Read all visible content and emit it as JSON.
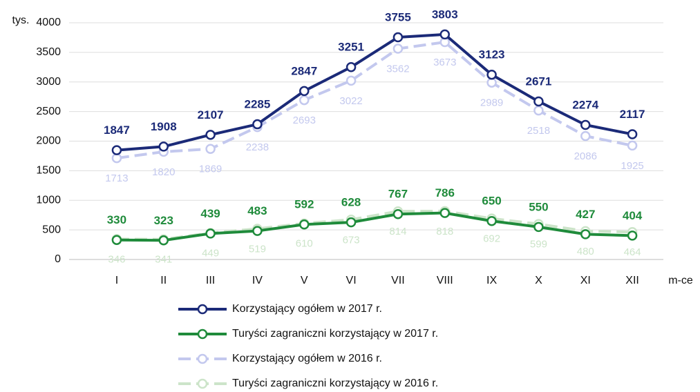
{
  "chart_data": {
    "type": "line",
    "y_label": "tys.",
    "x_label": "m-ce",
    "categories": [
      "I",
      "II",
      "III",
      "IV",
      "V",
      "VI",
      "VII",
      "VIII",
      "IX",
      "X",
      "XI",
      "XII"
    ],
    "series": [
      {
        "name": "Korzystający ogółem w 2017 r.",
        "color": "#1b2a78",
        "dashed": false,
        "values": [
          1847,
          1908,
          2107,
          2285,
          2847,
          3251,
          3755,
          3803,
          3123,
          2671,
          2274,
          2117
        ]
      },
      {
        "name": "Turyści zagraniczni korzystający w 2017 r.",
        "color": "#1f8b3b",
        "dashed": false,
        "values": [
          330,
          323,
          439,
          483,
          592,
          628,
          767,
          786,
          650,
          550,
          427,
          404
        ]
      },
      {
        "name": "Korzystający ogółem w 2016 r.",
        "color": "#c3c8ee",
        "dashed": true,
        "values": [
          1713,
          1820,
          1869,
          2238,
          2693,
          3022,
          3562,
          3673,
          2989,
          2518,
          2086,
          1925
        ]
      },
      {
        "name": "Turyści zagraniczni korzystający w 2016 r.",
        "color": "#cce4c9",
        "dashed": true,
        "values": [
          346,
          341,
          449,
          519,
          610,
          673,
          814,
          818,
          692,
          599,
          480,
          464
        ]
      }
    ],
    "ylim": [
      0,
      4000
    ],
    "yticks": [
      0,
      500,
      1000,
      1500,
      2000,
      2500,
      3000,
      3500,
      4000
    ],
    "grid": true,
    "legend": "bottom"
  }
}
